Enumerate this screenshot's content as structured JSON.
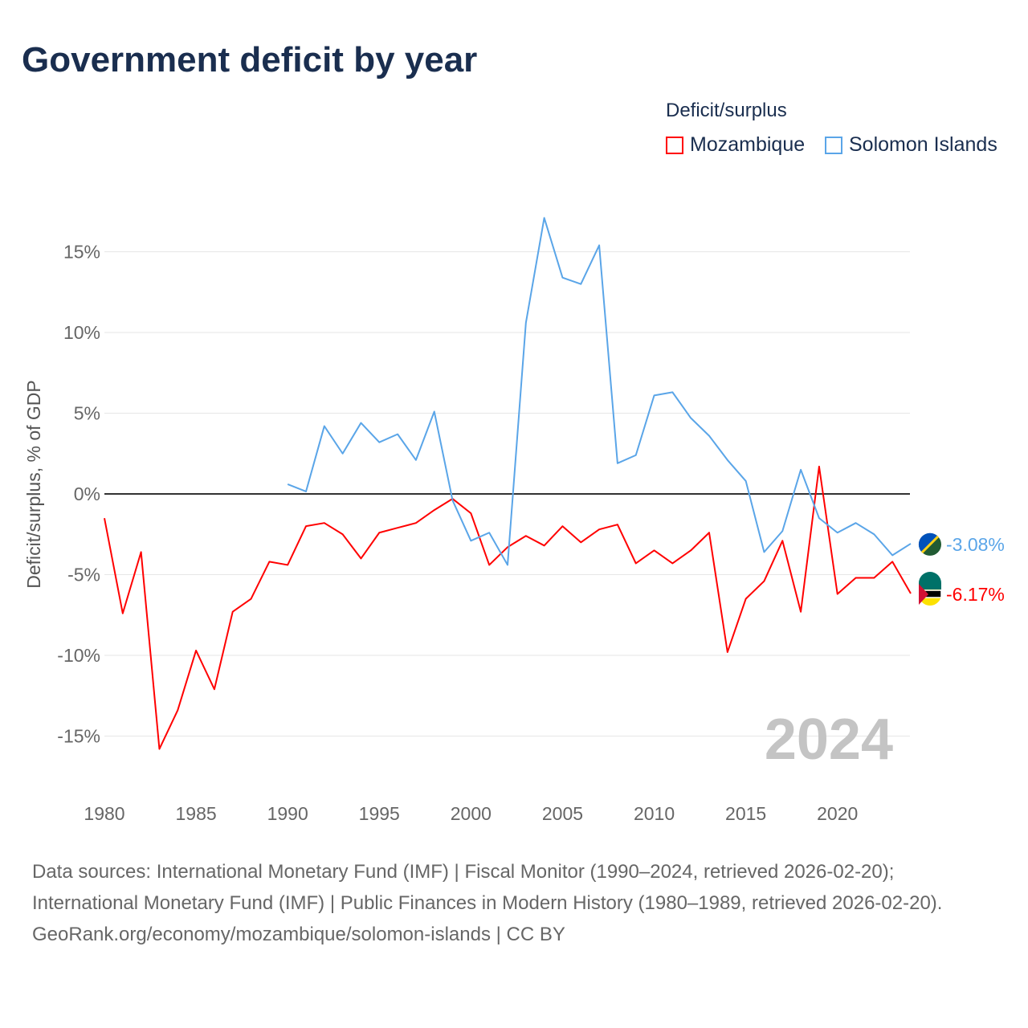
{
  "title": "Government deficit by year",
  "legend": {
    "title": "Deficit/surplus",
    "items": [
      {
        "name": "Mozambique",
        "color": "#ff0000"
      },
      {
        "name": "Solomon Islands",
        "color": "#5aa5e8"
      }
    ]
  },
  "footer": {
    "line1": "Data sources: International Monetary Fund (IMF) | Fiscal Monitor (1990–2024, retrieved 2026-02-20); International Monetary Fund (IMF) | Public Finances in Modern History (1980–1989, retrieved 2026-02-20).",
    "line2": "GeoRank.org/economy/mozambique/solomon-islands | CC BY"
  },
  "chart_data": {
    "type": "line",
    "title": "Government deficit by year",
    "ylabel": "Deficit/surplus, % of GDP",
    "xlabel": "",
    "year_watermark": "2024",
    "ylim": [
      -18,
      18
    ],
    "xlim": [
      1980,
      2024
    ],
    "yticks": [
      {
        "v": 15,
        "label": "15%"
      },
      {
        "v": 10,
        "label": "10%"
      },
      {
        "v": 5,
        "label": "5%"
      },
      {
        "v": 0,
        "label": "0%"
      },
      {
        "v": -5,
        "label": "-5%"
      },
      {
        "v": -10,
        "label": "-10%"
      },
      {
        "v": -15,
        "label": "-15%"
      }
    ],
    "xticks": [
      1980,
      1985,
      1990,
      1995,
      2000,
      2005,
      2010,
      2015,
      2020
    ],
    "series": [
      {
        "name": "Mozambique",
        "color": "#ff0000",
        "start": 1980,
        "end_label": "-6.17%",
        "values": [
          -1.5,
          -7.4,
          -3.6,
          -15.8,
          -13.4,
          -9.7,
          -12.1,
          -7.3,
          -6.5,
          -4.2,
          -4.4,
          -2.0,
          -1.8,
          -2.5,
          -4.0,
          -2.4,
          -2.1,
          -1.8,
          -1.0,
          -0.3,
          -1.2,
          -4.4,
          -3.3,
          -2.6,
          -3.2,
          -2.0,
          -3.0,
          -2.2,
          -1.9,
          -4.3,
          -3.5,
          -4.3,
          -3.5,
          -2.4,
          -9.8,
          -6.5,
          -5.4,
          -2.9,
          -7.3,
          1.7,
          -6.2,
          -5.2,
          -5.2,
          -4.2,
          -6.17
        ]
      },
      {
        "name": "Solomon Islands",
        "color": "#5aa5e8",
        "start": 1990,
        "end_label": "-3.08%",
        "values": [
          0.6,
          0.15,
          4.2,
          2.5,
          4.4,
          3.2,
          3.7,
          2.1,
          5.1,
          -0.4,
          -2.9,
          -2.4,
          -4.4,
          10.6,
          17.1,
          13.4,
          13.0,
          15.4,
          1.9,
          2.4,
          6.1,
          6.3,
          4.7,
          3.6,
          2.1,
          0.8,
          -3.6,
          -2.3,
          1.5,
          -1.5,
          -2.4,
          -1.8,
          -2.5,
          -3.8,
          -3.08
        ]
      }
    ]
  }
}
